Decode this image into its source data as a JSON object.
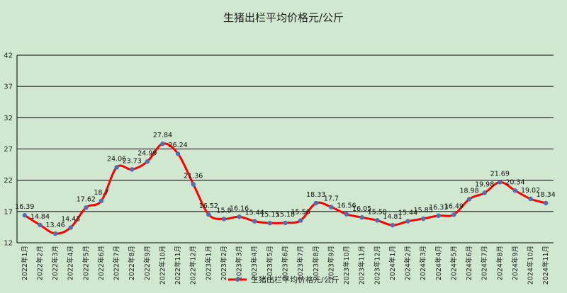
{
  "chart_data": {
    "type": "line",
    "title": "生猪出栏平均价格元/公斤",
    "xlabel": "",
    "ylabel": "",
    "ylim": [
      12,
      42
    ],
    "yticks": [
      12,
      17,
      22,
      27,
      32,
      37,
      42
    ],
    "grid": true,
    "legend_position": "bottom",
    "categories": [
      "2022年1月",
      "2022年2月",
      "2022年3月",
      "2022年4月",
      "2022年5月",
      "2022年6月",
      "2022年7月",
      "2022年8月",
      "2022年9月",
      "2022年10月",
      "2022年11月",
      "2022年12月",
      "2023年1月",
      "2023年2月",
      "2023年3月",
      "2023年4月",
      "2023年5月",
      "2023年6月",
      "2023年7月",
      "2023年8月",
      "2023年9月",
      "2023年10月",
      "2023年11月",
      "2023年12月",
      "2024年1月",
      "2024年2月",
      "2024年3月",
      "2024年4月",
      "2024年5月",
      "2024年6月",
      "2024年7月",
      "2024年8月",
      "2024年9月",
      "2024年10月",
      "2024年11月"
    ],
    "series": [
      {
        "name": "生猪出栏平均价格元/公斤",
        "color": "#ff0000",
        "marker_color": "#4f6fb0",
        "values": [
          16.39,
          14.84,
          13.46,
          14.43,
          17.62,
          18.7,
          24.06,
          23.73,
          24.99,
          27.84,
          26.24,
          21.36,
          16.52,
          15.8,
          16.16,
          15.44,
          15.15,
          15.18,
          15.56,
          18.33,
          17.7,
          16.56,
          16.05,
          15.58,
          14.81,
          15.44,
          15.85,
          16.33,
          16.49,
          18.98,
          19.98,
          21.69,
          20.34,
          19.02,
          18.34
        ]
      }
    ]
  }
}
